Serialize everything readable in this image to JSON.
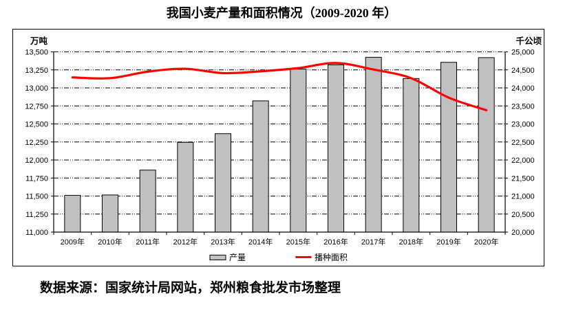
{
  "title": "我国小麦产量和面积情况（2009-2020 年）",
  "source_note": "数据来源：国家统计局网站，郑州粮食批发市场整理",
  "colors": {
    "bar_fill": "#C0C0C0",
    "bar_border": "#000000",
    "line": "#FF0000",
    "grid": "#000000",
    "axis": "#000000",
    "text": "#000000"
  },
  "chart_data": {
    "type": "bar+line",
    "title": "我国小麦产量和面积情况（2009-2020 年）",
    "categories": [
      "2009年",
      "2010年",
      "2011年",
      "2012年",
      "2013年",
      "2014年",
      "2015年",
      "2016年",
      "2017年",
      "2018年",
      "2019年",
      "2020年"
    ],
    "series": [
      {
        "name": "产量",
        "type": "bar",
        "axis": "left",
        "color": "#C0C0C0",
        "border_color": "#000000",
        "values": [
          11510,
          11515,
          11860,
          12245,
          12365,
          12820,
          13260,
          13320,
          13425,
          13130,
          13355,
          13420
        ]
      },
      {
        "name": "播种面积",
        "type": "line",
        "axis": "right",
        "color": "#FF0000",
        "values": [
          24290,
          24270,
          24450,
          24530,
          24410,
          24460,
          24550,
          24690,
          24510,
          24270,
          23730,
          23380
        ]
      }
    ],
    "left_axis": {
      "label": "万吨",
      "min": 11000,
      "max": 13500,
      "step": 250,
      "tick_labels": [
        "13,500",
        "13,250",
        "13,000",
        "12,750",
        "12,500",
        "12,250",
        "12,000",
        "11,750",
        "11,500",
        "11,250",
        "11,000"
      ]
    },
    "right_axis": {
      "label": "千公顷",
      "min": 20000,
      "max": 25000,
      "step": 500,
      "tick_labels": [
        "25,000",
        "24,500",
        "24,000",
        "23,500",
        "23,000",
        "22,500",
        "22,000",
        "21,500",
        "21,000",
        "20,500",
        "20,000"
      ]
    },
    "grid": {
      "horizontal": true,
      "style": "dash-dot-dot"
    },
    "legend_position": "bottom"
  },
  "legend": {
    "items": [
      {
        "label": "产量",
        "swatch": "bar"
      },
      {
        "label": "播种面积",
        "swatch": "line"
      }
    ]
  }
}
